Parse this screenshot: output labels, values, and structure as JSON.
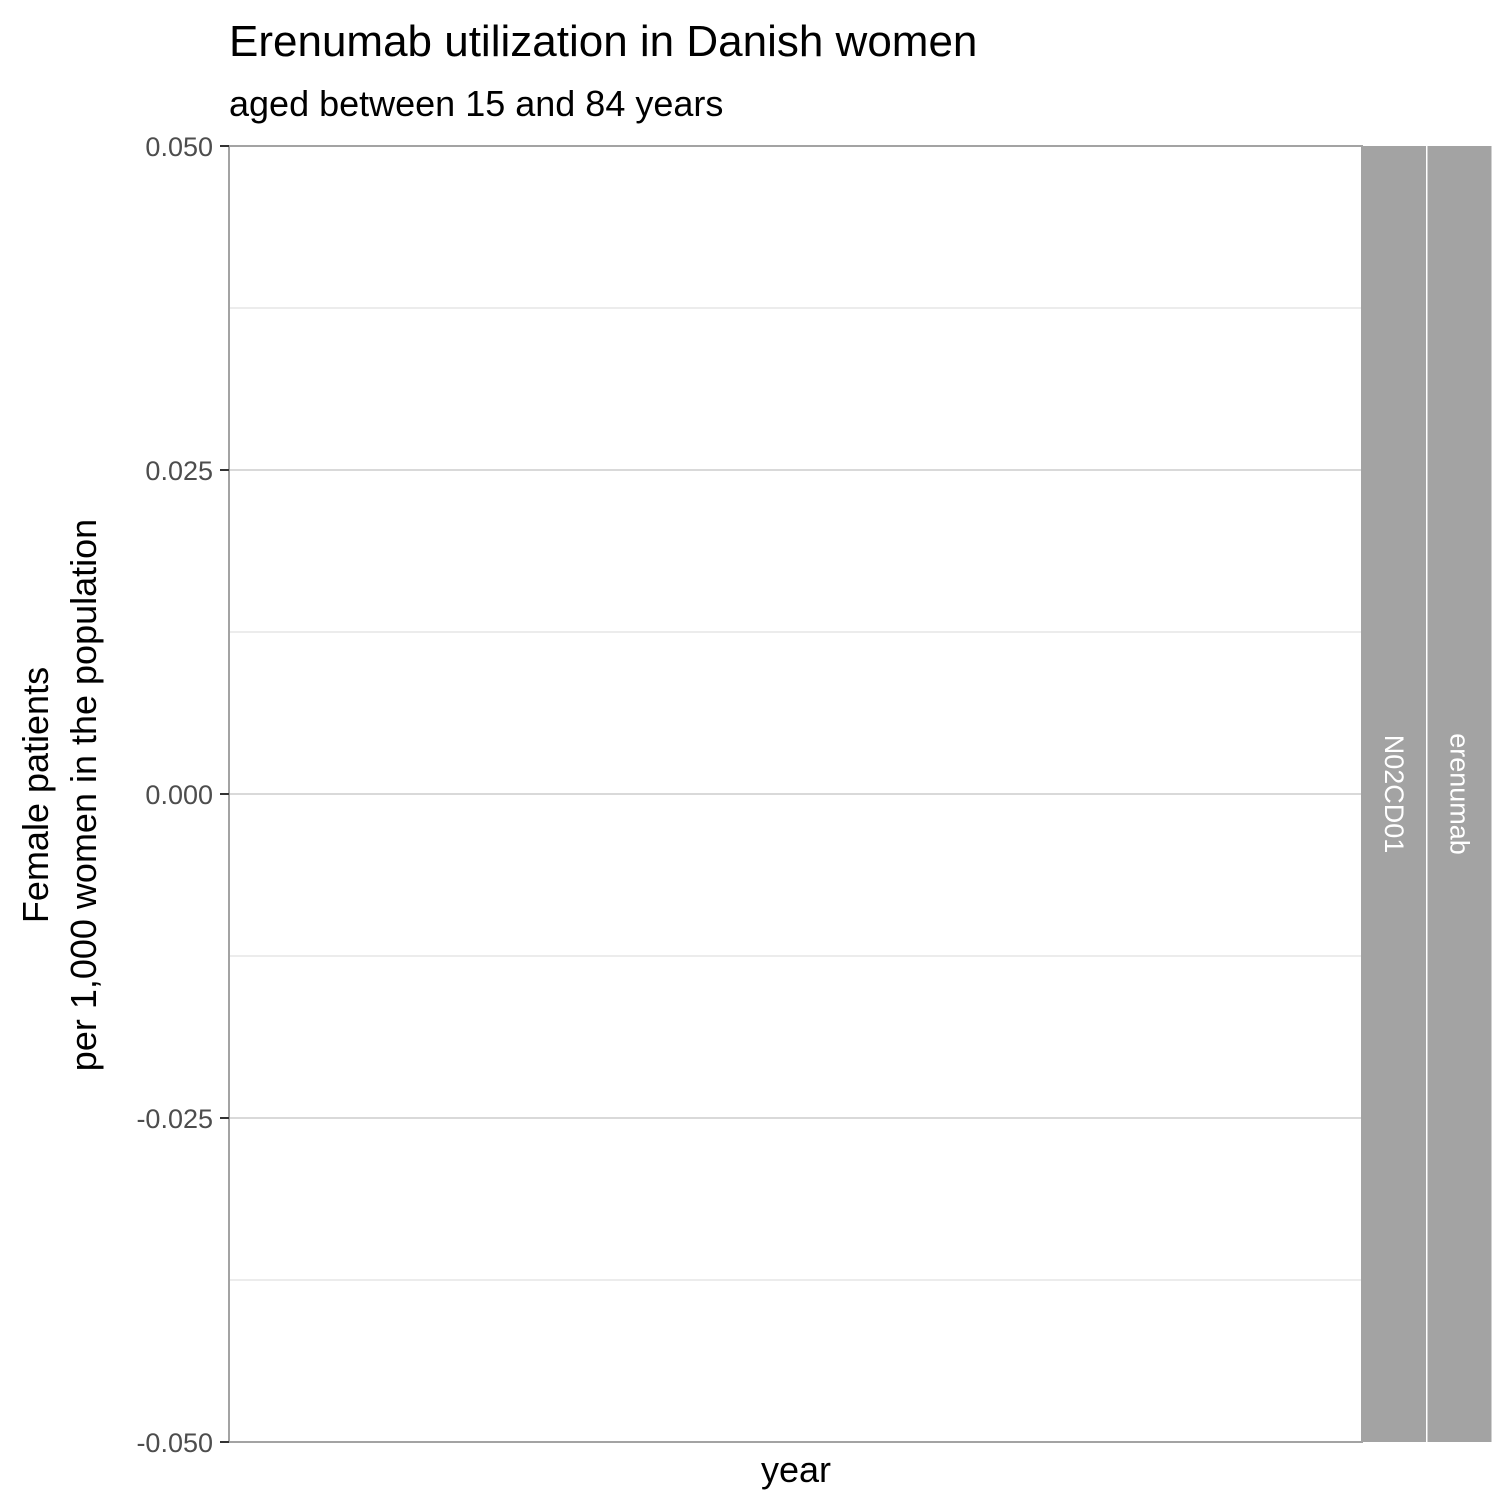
{
  "chart_data": {
    "type": "line",
    "title": "Erenumab utilization in Danish women",
    "subtitle": "aged between 15 and 84 years",
    "xlabel": "year",
    "ylabel_lines": [
      "Female patients",
      "per 1,000 women in the population"
    ],
    "ylim": [
      -0.05,
      0.05
    ],
    "y_ticks": [
      -0.05,
      -0.025,
      0.0,
      0.025,
      0.05
    ],
    "y_tick_labels": [
      "-0.050",
      "-0.025",
      "0.000",
      "0.025",
      "0.050"
    ],
    "y_minor_ticks": [
      -0.0375,
      -0.0125,
      0.0125,
      0.0375
    ],
    "x_ticks": [],
    "series": [],
    "facet_strips": [
      "N02CD01",
      "erenumab"
    ],
    "grid": true,
    "legend": "none",
    "colors": {
      "strip_fill": "#a3a3a3",
      "strip_text": "#ffffff",
      "grid": "#d9d9d9",
      "panel_border": "#a3a3a3",
      "tick_text": "#4d4d4d"
    }
  }
}
